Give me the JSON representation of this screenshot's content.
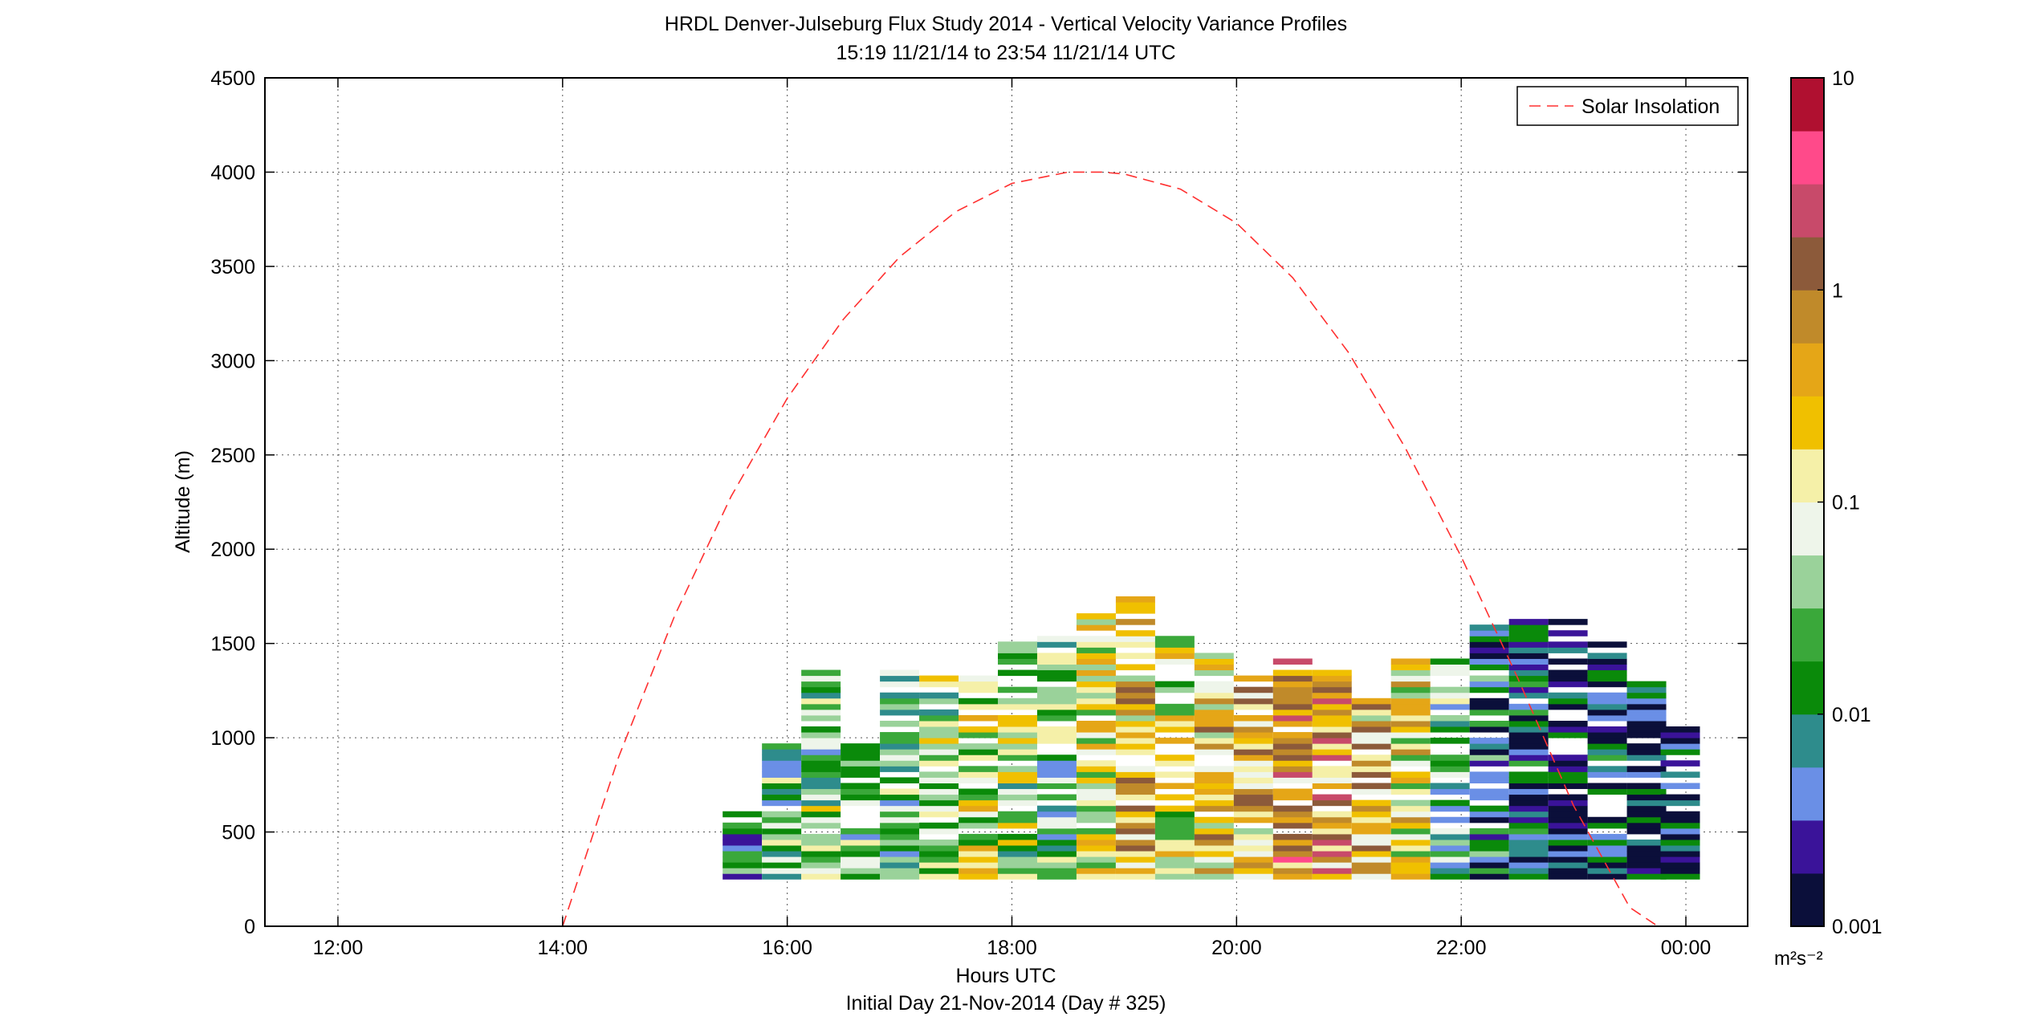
{
  "chart_data": {
    "type": "heatmap",
    "title": "HRDL Denver-Julseburg Flux Study 2014 - Vertical Velocity Variance Profiles",
    "subtitle": "15:19 11/21/14 to 23:54 11/21/14  UTC",
    "xlabel": "Hours UTC",
    "xlabel2": "Initial Day 21-Nov-2014 (Day # 325)",
    "ylabel": "Altitude (m)",
    "xlim": [
      11.35,
      24.55
    ],
    "ylim": [
      0,
      4500
    ],
    "x_tick_labels": [
      "12:00",
      "14:00",
      "16:00",
      "18:00",
      "20:00",
      "22:00",
      "00:00"
    ],
    "y_tick_labels": [
      "0",
      "500",
      "1000",
      "1500",
      "2000",
      "2500",
      "3000",
      "3500",
      "4000",
      "4500"
    ],
    "grid": true,
    "legend": {
      "position": "top-right",
      "entries": [
        "Solar Insolation"
      ]
    },
    "colorbar": {
      "scale": "log",
      "range": [
        0.001,
        10
      ],
      "tick_labels": [
        "0.001",
        "0.01",
        "0.1",
        "1",
        "10"
      ],
      "unit_label": "m²s⁻²",
      "colors": [
        "#0b0f3a",
        "#3a1399",
        "#6a8fe6",
        "#2e8c8c",
        "#0a8a0a",
        "#3aa83a",
        "#9ad29a",
        "#eef5ea",
        "#f5f0a8",
        "#f0c000",
        "#e5a617",
        "#c08a2a",
        "#8c5a3a",
        "#c84a6a",
        "#ff4a8a",
        "#b01030"
      ]
    },
    "solar_insolation": {
      "series_name": "Solar Insolation",
      "color": "#ff3030",
      "x": [
        14.0,
        14.5,
        15.0,
        15.5,
        16.0,
        16.5,
        17.0,
        17.5,
        18.0,
        18.5,
        18.8,
        19.0,
        19.5,
        20.0,
        20.5,
        21.0,
        21.5,
        22.0,
        22.5,
        23.0,
        23.5,
        23.75
      ],
      "y": [
        0,
        900,
        1650,
        2280,
        2800,
        3220,
        3550,
        3790,
        3940,
        4000,
        4000,
        3990,
        3910,
        3730,
        3440,
        3040,
        2540,
        1960,
        1320,
        640,
        100,
        0
      ]
    },
    "profiles": [
      {
        "time": 15.6,
        "base": 250,
        "top": 600,
        "mean": 0.006
      },
      {
        "time": 15.95,
        "base": 250,
        "top": 950,
        "mean": 0.02
      },
      {
        "time": 16.3,
        "base": 250,
        "top": 1360,
        "mean": 0.03
      },
      {
        "time": 16.65,
        "base": 250,
        "top": 950,
        "mean": 0.03
      },
      {
        "time": 17.0,
        "base": 250,
        "top": 1360,
        "mean": 0.02
      },
      {
        "time": 17.35,
        "base": 250,
        "top": 1330,
        "mean": 0.05
      },
      {
        "time": 17.7,
        "base": 250,
        "top": 1330,
        "mean": 0.08
      },
      {
        "time": 18.05,
        "base": 250,
        "top": 1490,
        "mean": 0.05
      },
      {
        "time": 18.4,
        "base": 250,
        "top": 1540,
        "mean": 0.03
      },
      {
        "time": 18.75,
        "base": 250,
        "top": 1660,
        "mean": 0.08
      },
      {
        "time": 19.1,
        "base": 250,
        "top": 1740,
        "mean": 0.3
      },
      {
        "time": 19.45,
        "base": 250,
        "top": 1540,
        "mean": 0.1
      },
      {
        "time": 19.8,
        "base": 250,
        "top": 1500,
        "mean": 0.2
      },
      {
        "time": 20.15,
        "base": 250,
        "top": 1320,
        "mean": 0.3
      },
      {
        "time": 20.5,
        "base": 250,
        "top": 1420,
        "mean": 0.6
      },
      {
        "time": 20.85,
        "base": 250,
        "top": 1360,
        "mean": 0.5
      },
      {
        "time": 21.2,
        "base": 250,
        "top": 1350,
        "mean": 0.3
      },
      {
        "time": 21.55,
        "base": 250,
        "top": 1420,
        "mean": 0.15
      },
      {
        "time": 21.9,
        "base": 250,
        "top": 1420,
        "mean": 0.02
      },
      {
        "time": 22.25,
        "base": 250,
        "top": 1580,
        "mean": 0.006
      },
      {
        "time": 22.6,
        "base": 250,
        "top": 1610,
        "mean": 0.004
      },
      {
        "time": 22.95,
        "base": 250,
        "top": 1610,
        "mean": 0.003
      },
      {
        "time": 23.3,
        "base": 250,
        "top": 1510,
        "mean": 0.003
      },
      {
        "time": 23.65,
        "base": 250,
        "top": 1290,
        "mean": 0.002
      },
      {
        "time": 23.95,
        "base": 250,
        "top": 1040,
        "mean": 0.002
      }
    ]
  }
}
